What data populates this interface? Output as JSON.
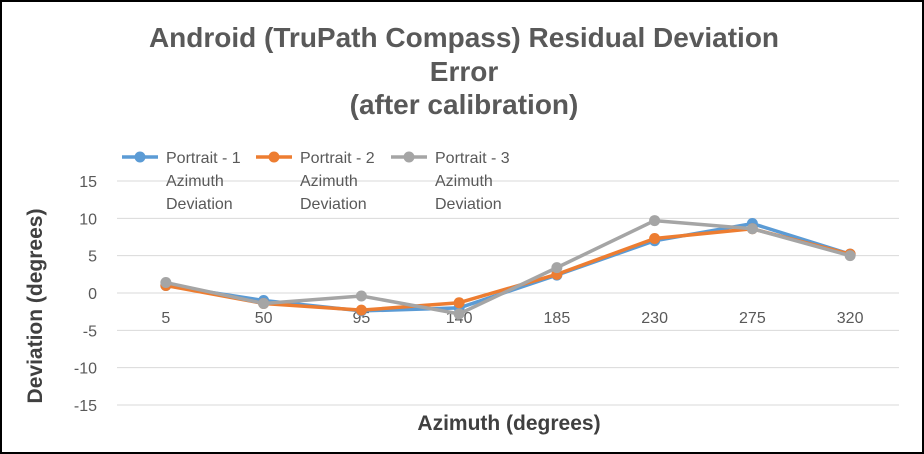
{
  "chart_data": {
    "type": "line",
    "title_lines": [
      "Android (TruPath Compass) Residual Deviation",
      "Error",
      "(after calibration)"
    ],
    "xlabel": "Azimuth (degrees)",
    "ylabel": "Deviation (degrees)",
    "categories": [
      "5",
      "50",
      "95",
      "140",
      "185",
      "230",
      "275",
      "320"
    ],
    "ylim": [
      -15,
      15
    ],
    "yticks": [
      15,
      10,
      5,
      0,
      -5,
      -10,
      -15
    ],
    "grid": true,
    "legend_position": "top-left",
    "series": [
      {
        "name_lines": [
          "Portrait - 1",
          "Azimuth",
          "Deviation"
        ],
        "color": "#5b9bd5",
        "values": [
          1.0,
          -1.0,
          -2.4,
          -2.0,
          2.4,
          7.0,
          9.3,
          5.2
        ]
      },
      {
        "name_lines": [
          "Portrait - 2",
          "Azimuth",
          "Deviation"
        ],
        "color": "#ed7d31",
        "values": [
          1.0,
          -1.4,
          -2.3,
          -1.3,
          2.5,
          7.3,
          8.6,
          5.2
        ]
      },
      {
        "name_lines": [
          "Portrait - 3",
          "Azimuth",
          "Deviation"
        ],
        "color": "#a5a5a5",
        "values": [
          1.4,
          -1.4,
          -0.4,
          -2.8,
          3.4,
          9.7,
          8.6,
          5.0
        ]
      }
    ]
  }
}
